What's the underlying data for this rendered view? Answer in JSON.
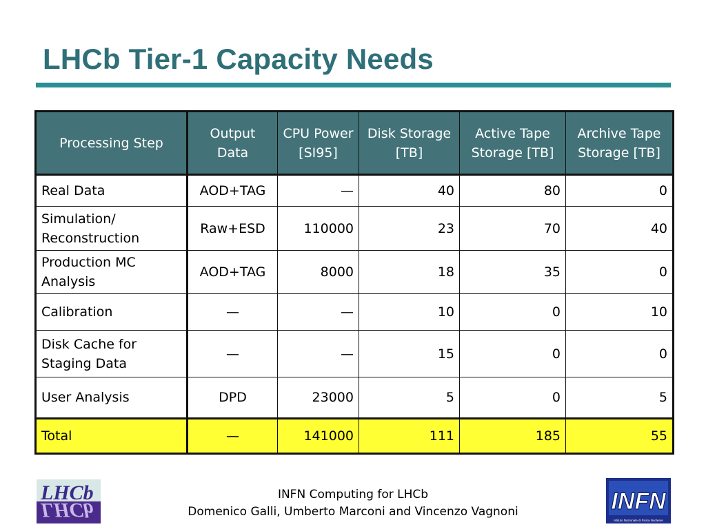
{
  "title": "LHCb Tier-1 Capacity Needs",
  "table": {
    "headers": [
      "Processing Step",
      "Output Data",
      "CPU Power [SI95]",
      "Disk Storage [TB]",
      "Active Tape Storage [TB]",
      "Archive Tape Storage [TB]"
    ],
    "rows": [
      {
        "step": "Real Data",
        "output": "AOD+TAG",
        "cpu": "—",
        "disk": "40",
        "active": "80",
        "archive": "0"
      },
      {
        "step": "Simulation/ Reconstruction",
        "output": "Raw+ESD",
        "cpu": "110000",
        "disk": "23",
        "active": "70",
        "archive": "40"
      },
      {
        "step": "Production MC Analysis",
        "output": "AOD+TAG",
        "cpu": "8000",
        "disk": "18",
        "active": "35",
        "archive": "0"
      },
      {
        "step": "Calibration",
        "output": "—",
        "cpu": "—",
        "disk": "10",
        "active": "0",
        "archive": "10"
      },
      {
        "step": "Disk Cache for Staging Data",
        "output": "—",
        "cpu": "—",
        "disk": "15",
        "active": "0",
        "archive": "0"
      },
      {
        "step": "User Analysis",
        "output": "DPD",
        "cpu": "23000",
        "disk": "5",
        "active": "0",
        "archive": "5"
      }
    ],
    "total": {
      "step": "Total",
      "output": "—",
      "cpu": "141000",
      "disk": "111",
      "active": "185",
      "archive": "55"
    }
  },
  "footer": {
    "line1": "INFN Computing for LHCb",
    "line2": "Domenico Galli, Umberto Marconi and Vincenzo Vagnoni"
  },
  "logos": {
    "lhcb_text": "LHCb",
    "infn_text": "INFN",
    "infn_caption": "Istituto Nazionale di Fisica Nucleare"
  },
  "colors": {
    "title": "#2e6f78",
    "rule": "#2a8f94",
    "header_bg": "#437378",
    "total_bg": "#ffff33"
  }
}
